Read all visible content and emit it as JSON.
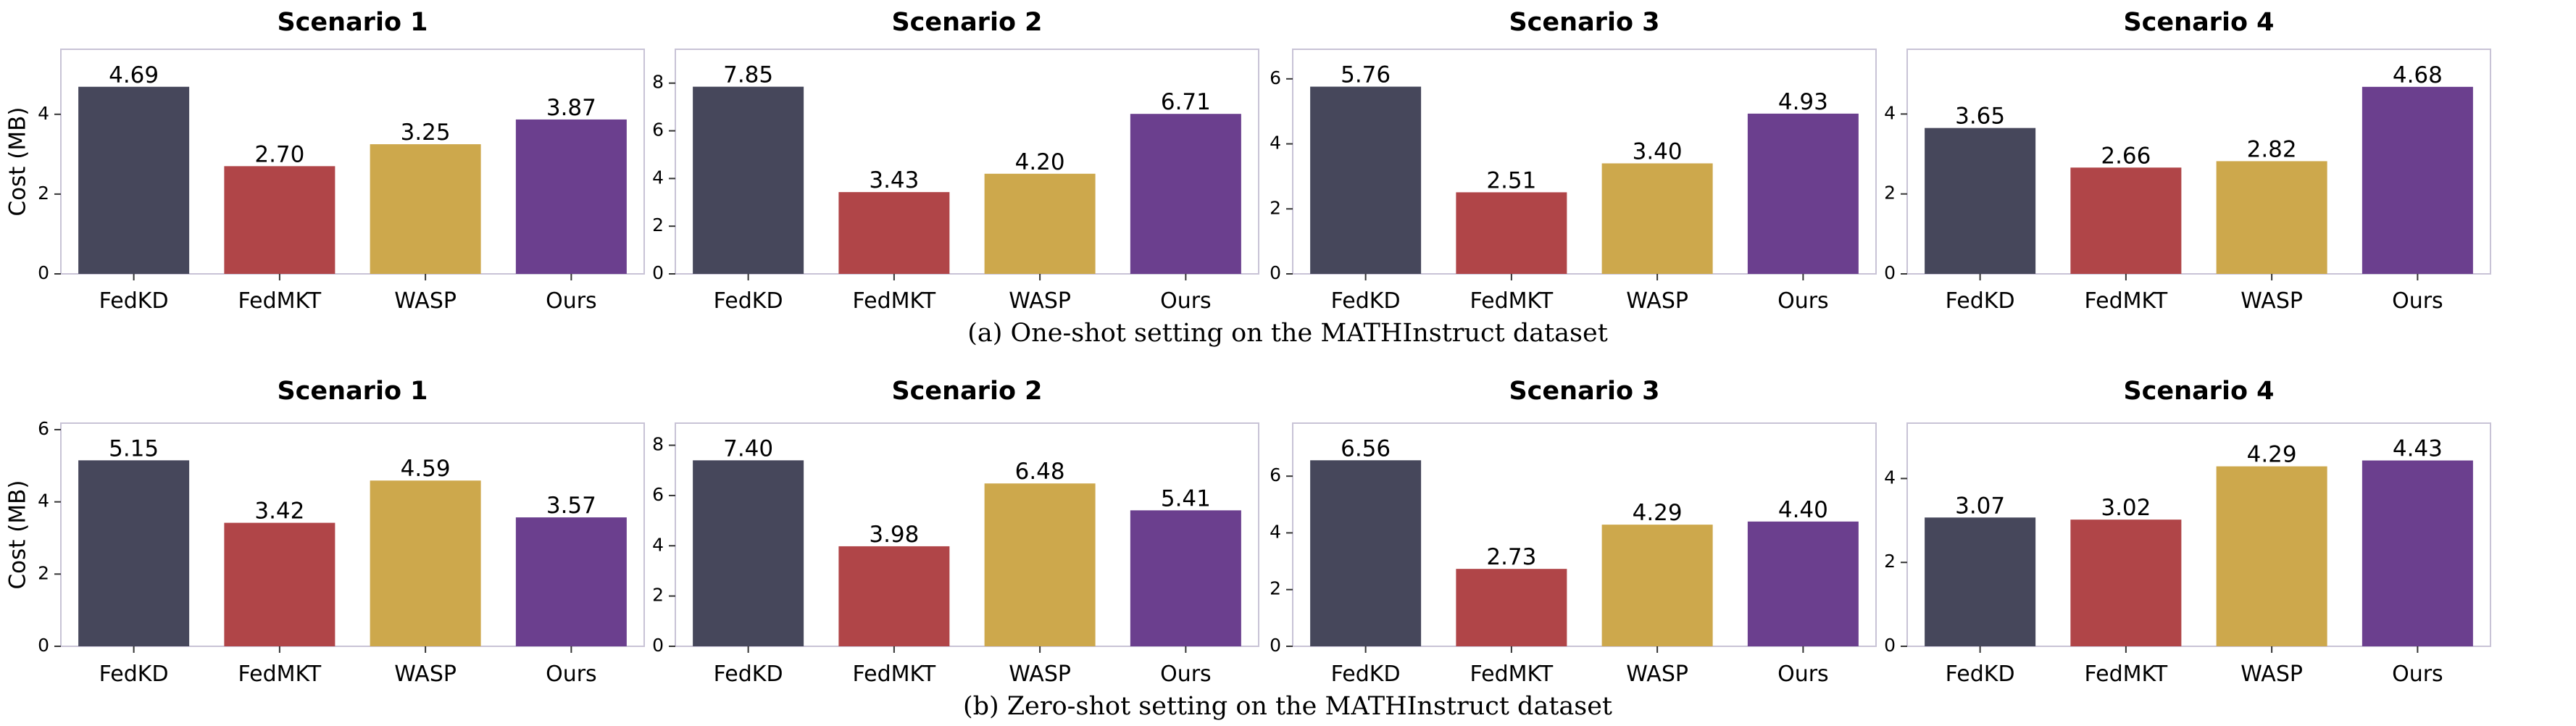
{
  "colors": {
    "FedKD": "#46475b",
    "FedMKT": "#b04548",
    "WASP": "#cda84c",
    "Ours": "#6b3f8e"
  },
  "rows": [
    {
      "caption": "(a) One-shot setting on the MATHInstruct dataset",
      "ylabel": "Cost (MB)",
      "charts": [
        {
          "type": "bar",
          "title": "Scenario 1",
          "categories": [
            "FedKD",
            "FedMKT",
            "WASP",
            "Ours"
          ],
          "values": [
            4.69,
            2.7,
            3.25,
            3.87
          ],
          "labels": [
            "4.69",
            "2.70",
            "3.25",
            "3.87"
          ],
          "ylim": [
            0,
            5.63
          ],
          "yticks": [
            0,
            2,
            4
          ]
        },
        {
          "type": "bar",
          "title": "Scenario 2",
          "categories": [
            "FedKD",
            "FedMKT",
            "WASP",
            "Ours"
          ],
          "values": [
            7.85,
            3.43,
            4.2,
            6.71
          ],
          "labels": [
            "7.85",
            "3.43",
            "4.20",
            "6.71"
          ],
          "ylim": [
            0,
            9.42
          ],
          "yticks": [
            0,
            2,
            4,
            6,
            8
          ]
        },
        {
          "type": "bar",
          "title": "Scenario 3",
          "categories": [
            "FedKD",
            "FedMKT",
            "WASP",
            "Ours"
          ],
          "values": [
            5.76,
            2.51,
            3.4,
            4.93
          ],
          "labels": [
            "5.76",
            "2.51",
            "3.40",
            "4.93"
          ],
          "ylim": [
            0,
            6.91
          ],
          "yticks": [
            0,
            2,
            4,
            6
          ]
        },
        {
          "type": "bar",
          "title": "Scenario 4",
          "categories": [
            "FedKD",
            "FedMKT",
            "WASP",
            "Ours"
          ],
          "values": [
            3.65,
            2.66,
            2.82,
            4.68
          ],
          "labels": [
            "3.65",
            "2.66",
            "2.82",
            "4.68"
          ],
          "ylim": [
            0,
            5.62
          ],
          "yticks": [
            0,
            2,
            4
          ]
        }
      ]
    },
    {
      "caption": "(b) Zero-shot setting on the MATHInstruct dataset",
      "ylabel": "Cost (MB)",
      "charts": [
        {
          "type": "bar",
          "title": "Scenario 1",
          "categories": [
            "FedKD",
            "FedMKT",
            "WASP",
            "Ours"
          ],
          "values": [
            5.15,
            3.42,
            4.59,
            3.57
          ],
          "labels": [
            "5.15",
            "3.42",
            "4.59",
            "3.57"
          ],
          "ylim": [
            0,
            6.18
          ],
          "yticks": [
            0,
            2,
            4,
            6
          ]
        },
        {
          "type": "bar",
          "title": "Scenario 2",
          "categories": [
            "FedKD",
            "FedMKT",
            "WASP",
            "Ours"
          ],
          "values": [
            7.4,
            3.98,
            6.48,
            5.41
          ],
          "labels": [
            "7.40",
            "3.98",
            "6.48",
            "5.41"
          ],
          "ylim": [
            0,
            8.88
          ],
          "yticks": [
            0,
            2,
            4,
            6,
            8
          ]
        },
        {
          "type": "bar",
          "title": "Scenario 3",
          "categories": [
            "FedKD",
            "FedMKT",
            "WASP",
            "Ours"
          ],
          "values": [
            6.56,
            2.73,
            4.29,
            4.4
          ],
          "labels": [
            "6.56",
            "2.73",
            "4.29",
            "4.40"
          ],
          "ylim": [
            0,
            7.87
          ],
          "yticks": [
            0,
            2,
            4,
            6
          ]
        },
        {
          "type": "bar",
          "title": "Scenario 4",
          "categories": [
            "FedKD",
            "FedMKT",
            "WASP",
            "Ours"
          ],
          "values": [
            3.07,
            3.02,
            4.29,
            4.43
          ],
          "labels": [
            "3.07",
            "3.02",
            "4.29",
            "4.43"
          ],
          "ylim": [
            0,
            5.32
          ],
          "yticks": [
            0,
            2,
            4
          ]
        }
      ]
    }
  ]
}
